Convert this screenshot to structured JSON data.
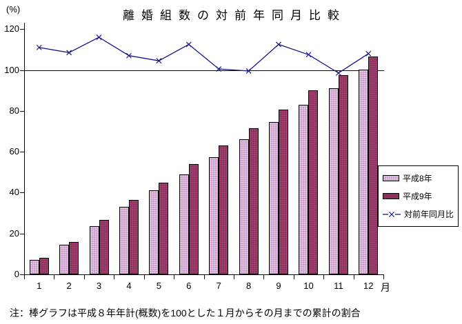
{
  "chart": {
    "title": "離婚組数の対前年同月比較",
    "y_unit": "(%)",
    "x_unit": "月",
    "note": "注：棒グラフは平成８年年計(概数)を100とした１月からその月までの累計の割合",
    "colors": {
      "heisei8": "#c493c4",
      "heisei8_dot": "#e8cfe8",
      "heisei9": "#8e2f5c",
      "heisei9_dot": "#a34a77",
      "line": "#151588",
      "axis": "#000000"
    }
  },
  "legend": {
    "items": [
      {
        "label": "平成8年",
        "type": "bar",
        "color": "#c493c4"
      },
      {
        "label": "平成9年",
        "type": "bar",
        "color": "#8e2f5c"
      },
      {
        "label": "対前年同月比",
        "type": "line",
        "color": "#151588"
      }
    ]
  },
  "chart_data": {
    "type": "bar+line",
    "title": "離婚組数の対前年同月比較",
    "xlabel": "月",
    "ylabel": "(%)",
    "categories": [
      "1",
      "2",
      "3",
      "4",
      "5",
      "6",
      "7",
      "8",
      "9",
      "10",
      "11",
      "12"
    ],
    "series": [
      {
        "name": "平成8年",
        "type": "bar",
        "values": [
          7,
          14.5,
          23.5,
          33,
          41,
          49,
          57.5,
          66,
          74.5,
          83,
          91,
          100
        ]
      },
      {
        "name": "平成9年",
        "type": "bar",
        "values": [
          8,
          16,
          26.5,
          36.5,
          45,
          54,
          63,
          71.5,
          80.5,
          90,
          97.5,
          106.5
        ]
      },
      {
        "name": "対前年同月比",
        "type": "line",
        "values": [
          111,
          108.5,
          116,
          107,
          104.5,
          112.5,
          100.5,
          99.5,
          112.5,
          107.5,
          98.5,
          108
        ]
      }
    ],
    "ylim": [
      0,
      125
    ],
    "y_ticks": [
      0,
      20,
      40,
      60,
      80,
      100,
      120
    ],
    "reference_line": 100,
    "grid": false,
    "legend_position": "right"
  }
}
